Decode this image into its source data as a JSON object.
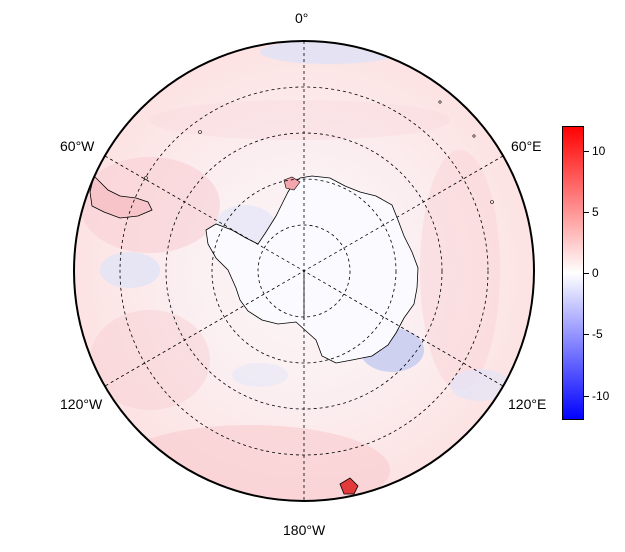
{
  "map": {
    "projection": "south-polar-stereographic",
    "longitude_labels": {
      "top": "0°",
      "upper_left": "60°W",
      "upper_right": "60°E",
      "lower_left": "120°W",
      "lower_right": "120°E",
      "bottom": "180°W"
    },
    "graticule": "dashed",
    "colors": {
      "negative_max": "#0000ff",
      "zero": "#ffffff",
      "positive_max": "#ff0000",
      "coastline": "#000000"
    }
  },
  "colorbar": {
    "min": -12,
    "max": 12,
    "ticks": [
      "10",
      "5",
      "0",
      "-5",
      "-10"
    ],
    "tick_values": [
      10,
      5,
      0,
      -5,
      -10
    ]
  }
}
